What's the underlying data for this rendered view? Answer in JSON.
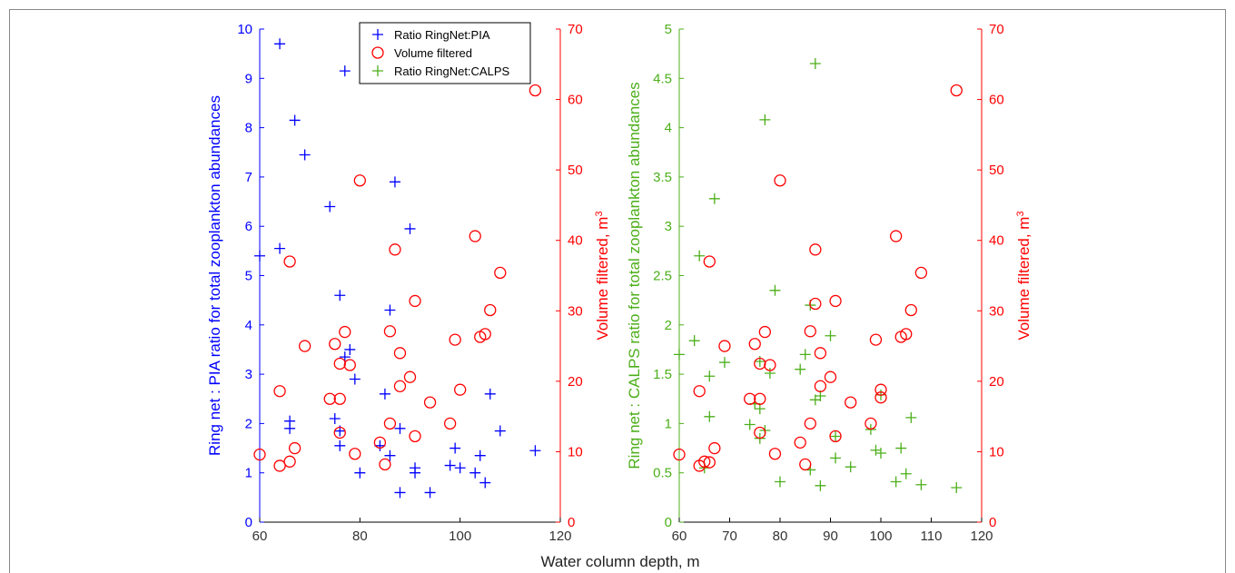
{
  "chart_data": [
    {
      "type": "scatter",
      "xlabel": "",
      "ylabel_left": "Ring net : PIA ratio for total zooplankton abundances",
      "ylabel_right": "Volume filtered, m",
      "ylabel_right_sup": "3",
      "xlim": [
        60,
        120
      ],
      "ylim_left": [
        0,
        10
      ],
      "ylim_right": [
        0,
        70
      ],
      "xticks": [
        "60",
        "80",
        "100",
        "120"
      ],
      "yticks_left": [
        "0",
        "1",
        "2",
        "3",
        "4",
        "5",
        "6",
        "7",
        "8",
        "9",
        "10"
      ],
      "yticks_right": [
        "0",
        "10",
        "20",
        "30",
        "40",
        "50",
        "60",
        "70"
      ],
      "left_color": "#0000ff",
      "right_color": "#ff0000",
      "legend_position": "top",
      "legend": [
        {
          "label": "Ratio RingNet:PIA",
          "marker": "plus",
          "color": "#0000ff"
        },
        {
          "label": "Volume filtered",
          "marker": "circle",
          "color": "#ff0000"
        },
        {
          "label": "Ratio RingNet:CALPS",
          "marker": "plus",
          "color": "#4caf1a"
        }
      ],
      "series": [
        {
          "name": "Ratio RingNet:PIA",
          "marker": "plus",
          "color": "#0000ff",
          "axis": "left",
          "points": [
            [
              60,
              5.4
            ],
            [
              64,
              9.7
            ],
            [
              64,
              5.55
            ],
            [
              66,
              2.05
            ],
            [
              66,
              1.9
            ],
            [
              67,
              8.15
            ],
            [
              69,
              7.45
            ],
            [
              74,
              6.4
            ],
            [
              75,
              2.1
            ],
            [
              76,
              4.6
            ],
            [
              76,
              1.55
            ],
            [
              76,
              1.85
            ],
            [
              77,
              3.35
            ],
            [
              77,
              9.15
            ],
            [
              78,
              3.5
            ],
            [
              79,
              2.9
            ],
            [
              80,
              1.0
            ],
            [
              84,
              1.55
            ],
            [
              85,
              2.6
            ],
            [
              86,
              4.3
            ],
            [
              86,
              1.35
            ],
            [
              87,
              6.9
            ],
            [
              88,
              1.9
            ],
            [
              88,
              0.6
            ],
            [
              90,
              5.95
            ],
            [
              91,
              1.1
            ],
            [
              91,
              1.0
            ],
            [
              94,
              0.6
            ],
            [
              98,
              1.15
            ],
            [
              99,
              1.5
            ],
            [
              100,
              1.1
            ],
            [
              103,
              1.0
            ],
            [
              104,
              1.35
            ],
            [
              105,
              0.8
            ],
            [
              106,
              2.6
            ],
            [
              108,
              1.85
            ],
            [
              115,
              1.45
            ]
          ]
        },
        {
          "name": "Volume filtered",
          "marker": "circle",
          "color": "#ff0000",
          "axis": "right",
          "points": [
            [
              60,
              9.6
            ],
            [
              64,
              18.6
            ],
            [
              64,
              8.0
            ],
            [
              66,
              37.0
            ],
            [
              66,
              8.6
            ],
            [
              67,
              10.5
            ],
            [
              69,
              25.0
            ],
            [
              74,
              17.5
            ],
            [
              75,
              25.3
            ],
            [
              76,
              17.5
            ],
            [
              76,
              22.5
            ],
            [
              76,
              12.7
            ],
            [
              77,
              27.0
            ],
            [
              78,
              22.3
            ],
            [
              79,
              9.7
            ],
            [
              80,
              48.5
            ],
            [
              84,
              11.3
            ],
            [
              85,
              8.2
            ],
            [
              86,
              27.1
            ],
            [
              86,
              14.0
            ],
            [
              87,
              38.7
            ],
            [
              88,
              24.0
            ],
            [
              88,
              19.3
            ],
            [
              90,
              20.6
            ],
            [
              91,
              31.4
            ],
            [
              91,
              12.2
            ],
            [
              94,
              17.0
            ],
            [
              98,
              14.0
            ],
            [
              99,
              25.9
            ],
            [
              100,
              18.8
            ],
            [
              103,
              40.6
            ],
            [
              104,
              26.3
            ],
            [
              105,
              26.7
            ],
            [
              106,
              30.1
            ],
            [
              108,
              35.4
            ],
            [
              115,
              61.3
            ]
          ]
        }
      ]
    },
    {
      "type": "scatter",
      "xlabel": "Water column depth, m",
      "ylabel_left": "Ring net : CALPS ratio for total zooplankton abundances",
      "ylabel_right": "Volume filtered, m",
      "ylabel_right_sup": "3",
      "xlim": [
        60,
        120
      ],
      "ylim_left": [
        0,
        5
      ],
      "ylim_right": [
        0,
        70
      ],
      "xticks": [
        "60",
        "70",
        "80",
        "90",
        "100",
        "110",
        "120"
      ],
      "yticks_left": [
        "0",
        "0.5",
        "1",
        "1.5",
        "2",
        "2.5",
        "3",
        "3.5",
        "4",
        "4.5",
        "5"
      ],
      "yticks_right": [
        "0",
        "10",
        "20",
        "30",
        "40",
        "50",
        "60",
        "70"
      ],
      "left_color": "#4caf1a",
      "right_color": "#ff0000",
      "series": [
        {
          "name": "Ratio RingNet:CALPS",
          "marker": "plus",
          "color": "#4caf1a",
          "axis": "left",
          "points": [
            [
              60,
              1.7
            ],
            [
              63,
              1.84
            ],
            [
              64,
              2.7
            ],
            [
              65,
              0.55
            ],
            [
              66,
              1.07
            ],
            [
              66,
              1.48
            ],
            [
              67,
              3.28
            ],
            [
              69,
              1.62
            ],
            [
              74,
              0.99
            ],
            [
              75,
              1.2
            ],
            [
              76,
              1.63
            ],
            [
              76,
              1.15
            ],
            [
              76,
              0.85
            ],
            [
              77,
              0.93
            ],
            [
              77,
              4.08
            ],
            [
              78,
              1.51
            ],
            [
              79,
              2.35
            ],
            [
              80,
              0.41
            ],
            [
              84,
              1.55
            ],
            [
              85,
              1.7
            ],
            [
              86,
              0.53
            ],
            [
              86,
              2.2
            ],
            [
              87,
              1.24
            ],
            [
              87,
              4.65
            ],
            [
              88,
              1.28
            ],
            [
              88,
              0.37
            ],
            [
              90,
              1.89
            ],
            [
              91,
              0.87
            ],
            [
              91,
              0.65
            ],
            [
              94,
              0.56
            ],
            [
              98,
              0.94
            ],
            [
              99,
              0.73
            ],
            [
              100,
              0.7
            ],
            [
              100,
              1.29
            ],
            [
              103,
              0.41
            ],
            [
              104,
              0.75
            ],
            [
              105,
              0.49
            ],
            [
              106,
              1.06
            ],
            [
              108,
              0.38
            ],
            [
              115,
              0.35
            ]
          ]
        },
        {
          "name": "Volume filtered",
          "marker": "circle",
          "color": "#ff0000",
          "axis": "right",
          "points": [
            [
              60,
              9.6
            ],
            [
              64,
              18.6
            ],
            [
              64,
              8.0
            ],
            [
              65,
              8.6
            ],
            [
              66,
              37.0
            ],
            [
              66,
              8.5
            ],
            [
              67,
              10.5
            ],
            [
              69,
              25.0
            ],
            [
              74,
              17.5
            ],
            [
              75,
              25.3
            ],
            [
              76,
              17.5
            ],
            [
              76,
              22.5
            ],
            [
              76,
              12.7
            ],
            [
              77,
              27.0
            ],
            [
              78,
              22.3
            ],
            [
              79,
              9.7
            ],
            [
              80,
              48.5
            ],
            [
              84,
              11.3
            ],
            [
              85,
              8.2
            ],
            [
              86,
              27.1
            ],
            [
              86,
              14.0
            ],
            [
              87,
              38.7
            ],
            [
              87,
              31.0
            ],
            [
              88,
              24.0
            ],
            [
              88,
              19.3
            ],
            [
              90,
              20.6
            ],
            [
              91,
              31.4
            ],
            [
              91,
              12.2
            ],
            [
              94,
              17.0
            ],
            [
              98,
              14.0
            ],
            [
              99,
              25.9
            ],
            [
              100,
              18.8
            ],
            [
              100,
              17.7
            ],
            [
              103,
              40.6
            ],
            [
              104,
              26.3
            ],
            [
              105,
              26.7
            ],
            [
              106,
              30.1
            ],
            [
              108,
              35.4
            ],
            [
              115,
              61.3
            ]
          ]
        }
      ]
    }
  ]
}
